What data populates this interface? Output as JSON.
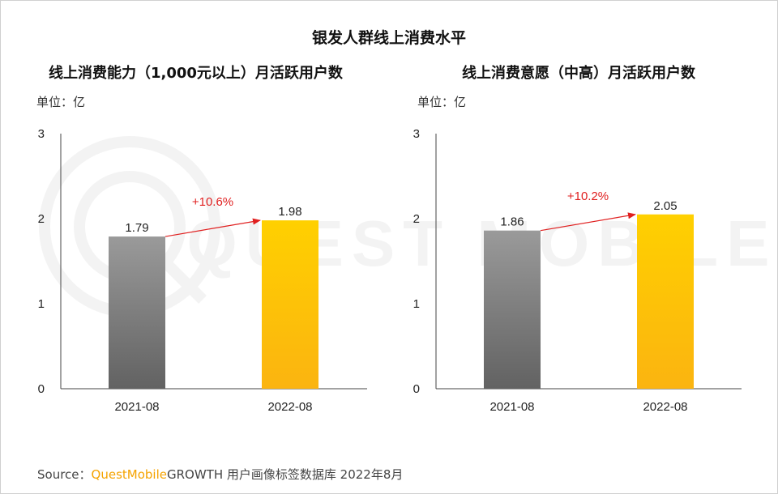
{
  "title": "银发人群线上消费水平",
  "colors": {
    "bar_old_top": "#9a9a9a",
    "bar_old_bottom": "#626262",
    "bar_new_top": "#ffd000",
    "bar_new_bottom": "#fbb410",
    "arrow": "#e02020",
    "growth_text": "#e02020",
    "brand": "#f5a300"
  },
  "chart_data": [
    {
      "type": "bar",
      "title": "线上消费能力（1,000元以上）月活跃用户数",
      "unit_label": "单位：亿",
      "categories": [
        "2021-08",
        "2022-08"
      ],
      "values": [
        1.79,
        1.98
      ],
      "value_labels": [
        "1.79",
        "1.98"
      ],
      "yticks": [
        "0",
        "1",
        "2",
        "3"
      ],
      "ylim": [
        0,
        3
      ],
      "growth_label": "+10.6%"
    },
    {
      "type": "bar",
      "title": "线上消费意愿（中高）月活跃用户数",
      "unit_label": "单位：亿",
      "categories": [
        "2021-08",
        "2022-08"
      ],
      "values": [
        1.86,
        2.05
      ],
      "value_labels": [
        "1.86",
        "2.05"
      ],
      "yticks": [
        "0",
        "1",
        "2",
        "3"
      ],
      "ylim": [
        0,
        3
      ],
      "growth_label": "+10.2%"
    }
  ],
  "watermark": "QUEST MOBILE",
  "source": {
    "prefix": "Source：",
    "brand": "QuestMobile",
    "rest": "GROWTH 用户画像标签数据库 2022年8月"
  }
}
